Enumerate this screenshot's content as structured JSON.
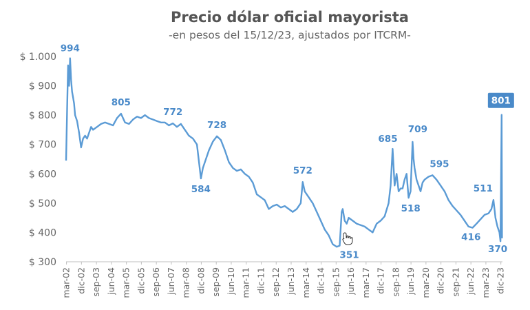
{
  "colors": {
    "line": "#5b9bd5",
    "annotation": "#4a8ac9",
    "badge": "#4a8ac9",
    "text": "#666666",
    "title": "#555555"
  },
  "chart_data": {
    "type": "line",
    "title": "Precio dólar oficial mayorista",
    "subtitle": "-en pesos del 15/12/23, ajustados por ITCRM-",
    "xlabel": "",
    "ylabel": "",
    "ylim": [
      300,
      1000
    ],
    "xlim": [
      2002.15,
      2024.0
    ],
    "ytick_values": [
      300,
      400,
      500,
      600,
      700,
      800,
      900,
      1000
    ],
    "ytick_labels": [
      "$ 300",
      "$ 400",
      "$ 500",
      "$ 600",
      "$ 700",
      "$ 800",
      "$ 900",
      "$ 1.000"
    ],
    "xtick_values": [
      2002.17,
      2002.92,
      2003.67,
      2004.42,
      2005.17,
      2005.92,
      2006.67,
      2007.42,
      2008.17,
      2008.92,
      2009.67,
      2010.42,
      2011.17,
      2011.92,
      2012.67,
      2013.42,
      2014.17,
      2014.92,
      2015.67,
      2016.42,
      2017.17,
      2017.92,
      2018.67,
      2019.42,
      2020.17,
      2020.92,
      2021.67,
      2022.42,
      2023.17,
      2023.92
    ],
    "xtick_labels": [
      "mar-02",
      "dic-02",
      "sep-03",
      "jun-04",
      "mar-05",
      "dic-05",
      "sep-06",
      "jun-07",
      "mar-08",
      "dic-08",
      "sep-09",
      "jun-10",
      "mar-11",
      "dic-11",
      "sep-12",
      "jun-13",
      "mar-14",
      "dic-14",
      "sep-15",
      "jun-16",
      "mar-17",
      "dic-17",
      "sep-18",
      "jun-19",
      "mar-20",
      "dic-20",
      "sep-21",
      "jun-22",
      "mar-23",
      "dic-23"
    ],
    "grid": false,
    "legend": "none",
    "series": [
      {
        "x": [
          2002.15,
          2002.2,
          2002.25,
          2002.3,
          2002.35,
          2002.4,
          2002.45,
          2002.5,
          2002.55,
          2002.6,
          2002.7,
          2002.8,
          2002.9,
          2003.0,
          2003.1,
          2003.2,
          2003.3,
          2003.4,
          2003.5,
          2003.7,
          2003.9,
          2004.1,
          2004.3,
          2004.5,
          2004.7,
          2004.9,
          2005.1,
          2005.3,
          2005.5,
          2005.7,
          2005.9,
          2006.1,
          2006.3,
          2006.5,
          2006.7,
          2006.9,
          2007.1,
          2007.3,
          2007.5,
          2007.7,
          2007.9,
          2008.1,
          2008.3,
          2008.5,
          2008.7,
          2008.9,
          2009.0,
          2009.1,
          2009.3,
          2009.5,
          2009.7,
          2009.9,
          2010.1,
          2010.3,
          2010.5,
          2010.7,
          2010.9,
          2011.1,
          2011.3,
          2011.5,
          2011.7,
          2011.9,
          2012.1,
          2012.3,
          2012.5,
          2012.7,
          2012.9,
          2013.1,
          2013.3,
          2013.5,
          2013.7,
          2013.9,
          2014.0,
          2014.1,
          2014.3,
          2014.5,
          2014.7,
          2014.9,
          2015.1,
          2015.3,
          2015.5,
          2015.7,
          2015.85,
          2015.95,
          2016.0,
          2016.1,
          2016.2,
          2016.3,
          2016.5,
          2016.7,
          2016.9,
          2017.1,
          2017.3,
          2017.5,
          2017.7,
          2017.9,
          2018.1,
          2018.3,
          2018.4,
          2018.5,
          2018.6,
          2018.7,
          2018.8,
          2018.9,
          2019.0,
          2019.1,
          2019.2,
          2019.3,
          2019.4,
          2019.5,
          2019.55,
          2019.6,
          2019.7,
          2019.8,
          2019.9,
          2020.0,
          2020.1,
          2020.3,
          2020.5,
          2020.7,
          2020.9,
          2021.1,
          2021.3,
          2021.5,
          2021.7,
          2021.9,
          2022.1,
          2022.3,
          2022.5,
          2022.7,
          2022.9,
          2023.1,
          2023.3,
          2023.45,
          2023.55,
          2023.6,
          2023.65,
          2023.75,
          2023.85,
          2023.9,
          2023.93,
          2023.96,
          2023.98
        ],
        "y": [
          645,
          820,
          970,
          900,
          994,
          920,
          880,
          860,
          840,
          800,
          780,
          740,
          690,
          720,
          730,
          720,
          740,
          760,
          750,
          760,
          770,
          775,
          770,
          765,
          790,
          805,
          775,
          770,
          785,
          795,
          790,
          800,
          790,
          785,
          780,
          775,
          775,
          765,
          772,
          760,
          770,
          750,
          730,
          720,
          700,
          584,
          620,
          640,
          680,
          710,
          728,
          715,
          680,
          640,
          620,
          610,
          615,
          600,
          590,
          570,
          530,
          520,
          510,
          480,
          490,
          495,
          485,
          490,
          480,
          470,
          480,
          500,
          572,
          540,
          520,
          500,
          470,
          440,
          410,
          390,
          360,
          351,
          355,
          470,
          480,
          440,
          430,
          450,
          440,
          430,
          425,
          420,
          410,
          400,
          430,
          440,
          455,
          500,
          560,
          685,
          560,
          600,
          540,
          550,
          550,
          580,
          600,
          518,
          540,
          709,
          650,
          620,
          580,
          560,
          540,
          570,
          580,
          590,
          595,
          580,
          560,
          540,
          510,
          490,
          475,
          460,
          440,
          420,
          416,
          430,
          445,
          460,
          465,
          480,
          511,
          480,
          450,
          420,
          400,
          370,
          600,
          801,
          380
        ]
      }
    ],
    "annotations": [
      {
        "label": "994",
        "x": 2002.35,
        "y": 994
      },
      {
        "label": "805",
        "x": 2004.9,
        "y": 805
      },
      {
        "label": "772",
        "x": 2007.5,
        "y": 772
      },
      {
        "label": "584",
        "x": 2008.9,
        "y": 584
      },
      {
        "label": "728",
        "x": 2009.7,
        "y": 728
      },
      {
        "label": "572",
        "x": 2014.0,
        "y": 572
      },
      {
        "label": "351",
        "x": 2015.85,
        "y": 351
      },
      {
        "label": "685",
        "x": 2018.4,
        "y": 685
      },
      {
        "label": "518",
        "x": 2019.2,
        "y": 518
      },
      {
        "label": "709",
        "x": 2019.55,
        "y": 709
      },
      {
        "label": "595",
        "x": 2020.5,
        "y": 595
      },
      {
        "label": "416",
        "x": 2022.7,
        "y": 416
      },
      {
        "label": "511",
        "x": 2023.1,
        "y": 511
      },
      {
        "label": "370",
        "x": 2023.9,
        "y": 370
      },
      {
        "label": "801",
        "x": 2023.96,
        "y": 801
      }
    ]
  }
}
